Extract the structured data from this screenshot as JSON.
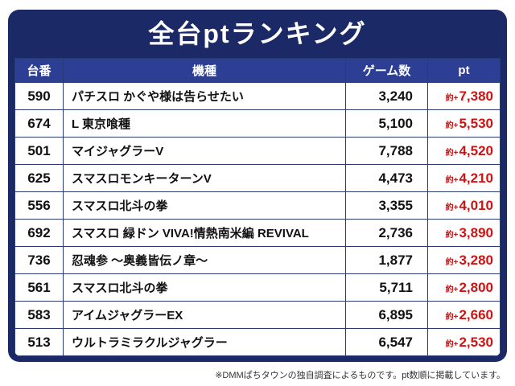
{
  "title": "全台ptランキング",
  "headers": {
    "no": "台番",
    "model": "機種",
    "games": "ゲーム数",
    "pt": "pt"
  },
  "rows": [
    {
      "no": "590",
      "model": "パチスロ かぐや様は告らせたい",
      "games": "3,240",
      "pt_prefix": "約+",
      "pt_value": "7,380"
    },
    {
      "no": "674",
      "model": "L 東京喰種",
      "games": "5,100",
      "pt_prefix": "約+",
      "pt_value": "5,530"
    },
    {
      "no": "501",
      "model": "マイジャグラーV",
      "games": "7,788",
      "pt_prefix": "約+",
      "pt_value": "4,520"
    },
    {
      "no": "625",
      "model": "スマスロモンキーターンV",
      "games": "4,473",
      "pt_prefix": "約+",
      "pt_value": "4,210"
    },
    {
      "no": "556",
      "model": "スマスロ北斗の拳",
      "games": "3,355",
      "pt_prefix": "約+",
      "pt_value": "4,010"
    },
    {
      "no": "692",
      "model": "スマスロ 緑ドン VIVA!情熱南米編 REVIVAL",
      "games": "2,736",
      "pt_prefix": "約+",
      "pt_value": "3,890"
    },
    {
      "no": "736",
      "model": "忍魂参 〜奥義皆伝ノ章〜",
      "games": "1,877",
      "pt_prefix": "約+",
      "pt_value": "3,280"
    },
    {
      "no": "561",
      "model": "スマスロ北斗の拳",
      "games": "5,711",
      "pt_prefix": "約+",
      "pt_value": "2,800"
    },
    {
      "no": "583",
      "model": "アイムジャグラーEX",
      "games": "6,895",
      "pt_prefix": "約+",
      "pt_value": "2,660"
    },
    {
      "no": "513",
      "model": "ウルトラミラクルジャグラー",
      "games": "6,547",
      "pt_prefix": "約+",
      "pt_value": "2,530"
    }
  ],
  "footer_note": "※DMMぱちタウンの独自調査によるものです。pt数順に掲載しています。",
  "colors": {
    "frame_navy": "#1b2a66",
    "header_blue": "#2c3f94",
    "pt_red": "#cf1212",
    "grid_line": "#2a3a74",
    "text_black": "#111111"
  },
  "chart_data": {
    "type": "table",
    "title": "全台ptランキング",
    "columns": [
      "台番",
      "機種",
      "ゲーム数",
      "pt"
    ],
    "rows": [
      [
        "590",
        "パチスロ かぐや様は告らせたい",
        3240,
        "約+7,380"
      ],
      [
        "674",
        "L 東京喰種",
        5100,
        "約+5,530"
      ],
      [
        "501",
        "マイジャグラーV",
        7788,
        "約+4,520"
      ],
      [
        "625",
        "スマスロモンキーターンV",
        4473,
        "約+4,210"
      ],
      [
        "556",
        "スマスロ北斗の拳",
        3355,
        "約+4,010"
      ],
      [
        "692",
        "スマスロ 緑ドン VIVA!情熱南米編 REVIVAL",
        2736,
        "約+3,890"
      ],
      [
        "736",
        "忍魂参 〜奥義皆伝ノ章〜",
        1877,
        "約+3,280"
      ],
      [
        "561",
        "スマスロ北斗の拳",
        5711,
        "約+2,800"
      ],
      [
        "583",
        "アイムジャグラーEX",
        6895,
        "約+2,660"
      ],
      [
        "513",
        "ウルトラミラクルジャグラー",
        6547,
        "約+2,530"
      ]
    ],
    "note": "※DMMぱちタウンの独自調査によるものです。pt数順に掲載しています。"
  }
}
